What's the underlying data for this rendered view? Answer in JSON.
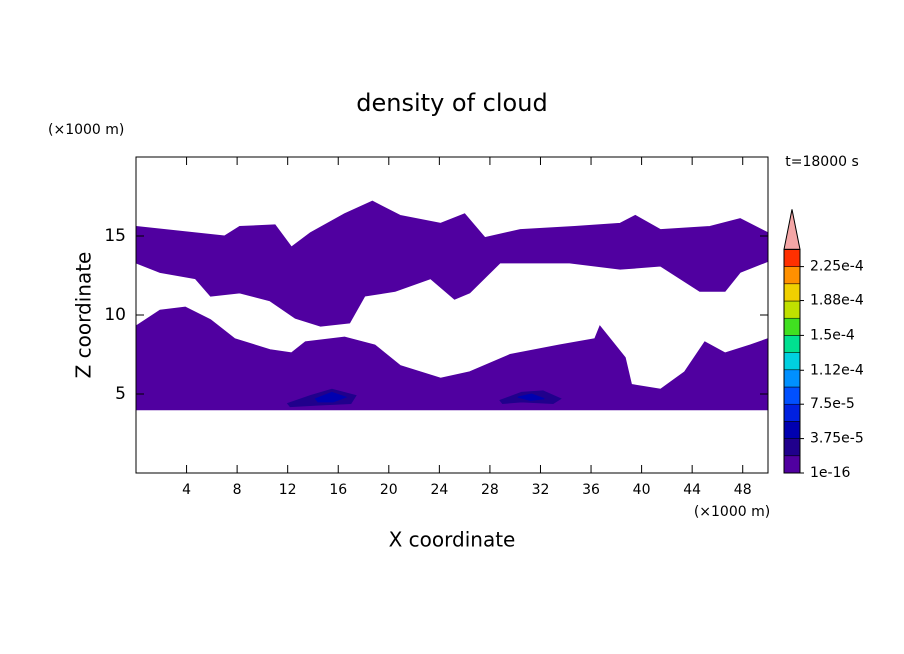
{
  "chart_data": {
    "type": "contour",
    "title": "density of cloud",
    "x_label": "X coordinate",
    "y_label": "Z coordinate",
    "x_unit": "(×1000 m)",
    "y_unit": "(×1000 m)",
    "time_label": "t=18000 s",
    "xlim": [
      0,
      50
    ],
    "ylim": [
      0,
      20
    ],
    "xticks": [
      4,
      8,
      12,
      16,
      20,
      24,
      28,
      32,
      36,
      40,
      44,
      48
    ],
    "yticks": [
      5,
      10,
      15
    ],
    "colorbar": {
      "lim": [
        1e-16,
        0.00024375
      ],
      "colors": [
        "#5000a0",
        "#20008c",
        "#0000b0",
        "#0020e0",
        "#0050ff",
        "#0090ff",
        "#00d0e0",
        "#00e090",
        "#40e020",
        "#c0e000",
        "#f0d000",
        "#ff9000",
        "#ff3000"
      ],
      "over_color": "#f4a6a6",
      "ticks": [
        1e-16,
        {
          "value": 3.75e-05,
          "label": "3.75e-5"
        },
        {
          "value": 7.5e-05,
          "label": "7.5e-5"
        },
        {
          "value": 0.000112,
          "label": "1.12e-4"
        },
        {
          "value": 0.00015,
          "label": "1.5e-4"
        },
        {
          "value": 0.000188,
          "label": "1.88e-4"
        },
        {
          "value": 0.000225,
          "label": "2.25e-4"
        }
      ]
    },
    "regions": [
      {
        "value": 1e-16,
        "x": [
          0,
          3.5,
          7.0,
          8.2,
          11.0,
          12.3,
          13.8,
          16.5,
          18.7,
          20.9,
          24.1,
          26.0,
          27.6,
          30.4,
          34.7,
          38.3,
          39.5,
          41.5,
          45.4,
          47.8,
          50,
          50,
          47.8,
          46.6,
          44.6,
          41.5,
          38.3,
          34.3,
          28.8,
          26.4,
          25.2,
          23.3,
          20.5,
          18.1,
          16.9,
          14.6,
          12.6,
          10.6,
          8.2,
          5.9,
          4.7,
          1.9,
          0
        ],
        "z": [
          15.6,
          15.3,
          15.0,
          15.6,
          15.7,
          14.3,
          15.2,
          16.4,
          17.2,
          16.3,
          15.8,
          16.4,
          14.9,
          15.4,
          15.6,
          15.8,
          16.3,
          15.4,
          15.6,
          16.1,
          15.2,
          13.4,
          12.7,
          11.5,
          11.5,
          13.1,
          12.9,
          13.3,
          13.3,
          11.4,
          11.0,
          12.3,
          11.5,
          11.2,
          9.5,
          9.3,
          9.8,
          10.9,
          11.4,
          11.2,
          12.3,
          12.7,
          13.3
        ]
      },
      {
        "value": 1e-16,
        "x": [
          0,
          1.9,
          3.9,
          5.9,
          7.8,
          10.6,
          12.3,
          13.4,
          16.5,
          18.9,
          20.9,
          24.1,
          26.4,
          29.6,
          33.5,
          36.3,
          36.7,
          37.7,
          38.7,
          39.2,
          41.5,
          43.4,
          45.0,
          46.6,
          48.6,
          50,
          50,
          0
        ],
        "z": [
          9.3,
          10.3,
          10.5,
          9.7,
          8.5,
          7.8,
          7.6,
          8.3,
          8.6,
          8.1,
          6.8,
          6.0,
          6.4,
          7.5,
          8.1,
          8.5,
          9.3,
          8.3,
          7.3,
          5.6,
          5.3,
          6.4,
          8.3,
          7.6,
          8.1,
          8.5,
          4.0,
          4.0
        ]
      },
      {
        "value": 3e-05,
        "x": [
          12.0,
          13.8,
          15.5,
          17.4,
          17.0,
          14.5,
          12.2
        ],
        "z": [
          4.4,
          4.9,
          5.3,
          4.9,
          4.4,
          4.3,
          4.2
        ]
      },
      {
        "value": 3e-05,
        "x": [
          28.8,
          30.5,
          32.2,
          33.6,
          33.0,
          30.5,
          29.0
        ],
        "z": [
          4.6,
          5.1,
          5.2,
          4.7,
          4.4,
          4.5,
          4.4
        ]
      },
      {
        "value": 5e-05,
        "x": [
          14.2,
          15.5,
          16.6,
          15.6,
          14.4
        ],
        "z": [
          4.7,
          5.1,
          4.8,
          4.5,
          4.5
        ]
      },
      {
        "value": 5e-05,
        "x": [
          30.2,
          31.3,
          32.3,
          31.2
        ],
        "z": [
          4.8,
          5.0,
          4.7,
          4.6
        ]
      }
    ]
  }
}
